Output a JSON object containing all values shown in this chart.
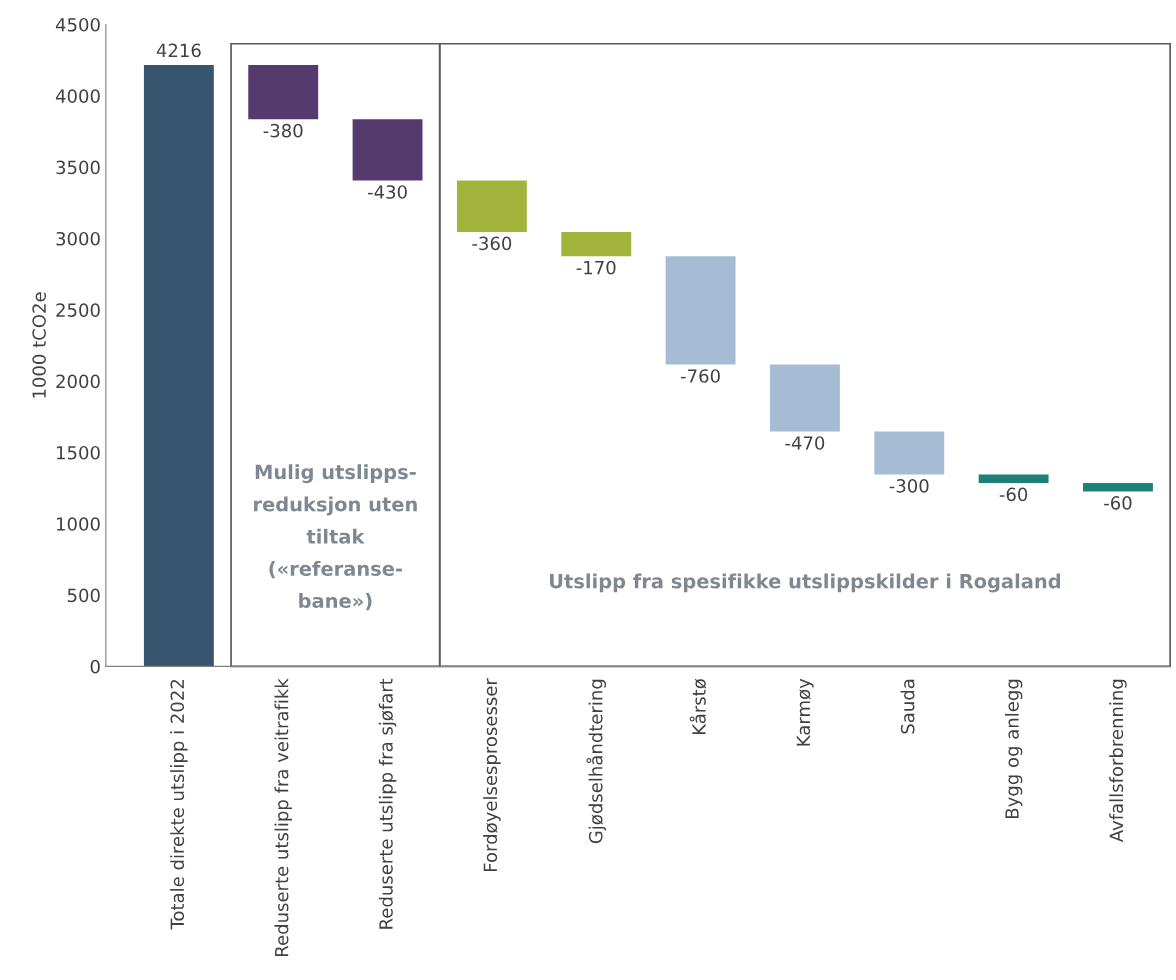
{
  "chart_data": {
    "type": "bar",
    "ylabel": "1000 tCO2e",
    "categories": [
      "Totale direkte utslipp i 2022",
      "Reduserte utslipp fra veitrafikk",
      "Reduserte utslipp fra sjøfart",
      "Fordøyelsesprosesser",
      "Gjødselhåndtering",
      "Kårstø",
      "Karmøy",
      "Sauda",
      "Bygg og anlegg",
      "Avfallsforbrenning"
    ],
    "values": [
      4216,
      -380,
      -430,
      -360,
      -170,
      -760,
      -470,
      -300,
      -60,
      -60
    ],
    "base": [
      0,
      4216,
      3836,
      3406,
      3046,
      2876,
      2116,
      1646,
      1346,
      1286
    ],
    "colors": [
      "#38556f",
      "#553a6e",
      "#553a6e",
      "#a3b43c",
      "#a3b43c",
      "#a6bcd4",
      "#a6bcd4",
      "#a6bcd4",
      "#1e8077",
      "#1e8077"
    ],
    "data_labels": true,
    "ylim": [
      0,
      4500
    ],
    "yticks": [
      0,
      500,
      1000,
      1500,
      2000,
      2500,
      3000,
      3500,
      4000,
      4500
    ],
    "grid": false,
    "legend": false,
    "annotations": [
      "Mulig utslipps-\nreduksjon uten\ntiltak\n(«referanse-\nbane»)",
      "Utslipp fra spesifikke utslippskilder i Rogaland"
    ]
  }
}
